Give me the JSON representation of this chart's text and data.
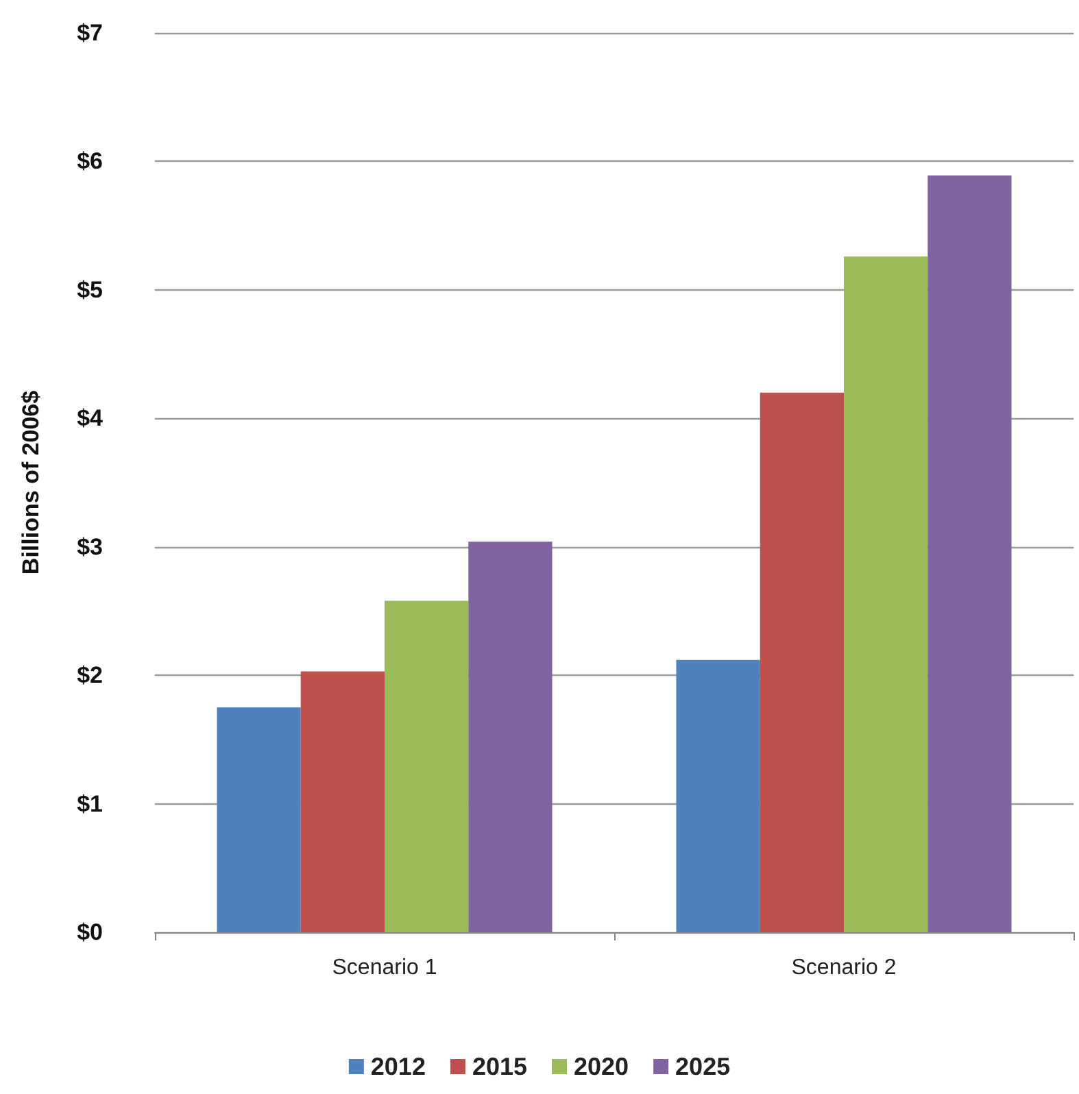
{
  "chart_data": {
    "type": "bar",
    "ylabel": "Billions of 2006$",
    "categories": [
      "Scenario 1",
      "Scenario 2"
    ],
    "series": [
      {
        "name": "2012",
        "color": "#4f81bd",
        "values": [
          1.75,
          2.12
        ]
      },
      {
        "name": "2015",
        "color": "#c0504d",
        "values": [
          2.03,
          4.2
        ]
      },
      {
        "name": "2020",
        "color": "#9bbb59",
        "values": [
          2.58,
          5.26
        ]
      },
      {
        "name": "2025",
        "color": "#8064a2",
        "values": [
          3.04,
          5.89
        ]
      }
    ],
    "ylim": [
      0,
      7
    ],
    "yticks": [
      {
        "value": 0,
        "label": "$0"
      },
      {
        "value": 1,
        "label": "$1"
      },
      {
        "value": 2,
        "label": "$2"
      },
      {
        "value": 3,
        "label": "$3"
      },
      {
        "value": 4,
        "label": "$4"
      },
      {
        "value": 5,
        "label": "$5"
      },
      {
        "value": 6,
        "label": "$6"
      },
      {
        "value": 7,
        "label": "$7"
      }
    ],
    "grid": "y",
    "legend": "bottom"
  }
}
